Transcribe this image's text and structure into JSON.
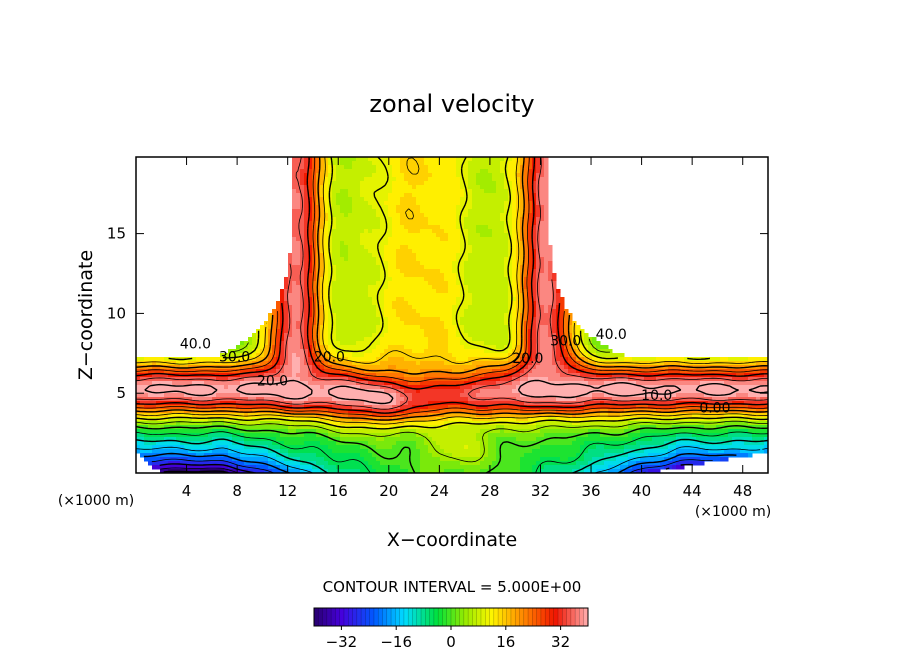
{
  "chart_data": {
    "type": "heatmap",
    "title": "zonal velocity",
    "xlabel": "X−coordinate",
    "ylabel": "Z−coordinate",
    "x_unit_left": "(×1000 m)",
    "x_unit_right": "(×1000 m)",
    "xlim": [
      0,
      50
    ],
    "ylim": [
      0,
      19.8
    ],
    "x_ticks": [
      4,
      8,
      12,
      16,
      20,
      24,
      28,
      32,
      36,
      40,
      44,
      48
    ],
    "y_ticks": [
      5,
      10,
      15
    ],
    "contour_interval_text": "CONTOUR INTERVAL = 5.000E+00",
    "contour_interval": 5,
    "color_range": [
      -40,
      40
    ],
    "colorbar_ticks": [
      -32,
      -16,
      0,
      16,
      32
    ],
    "contour_labels": [
      {
        "text": "40.0",
        "x": 4.7,
        "z": 8.1
      },
      {
        "text": "30.0",
        "x": 7.8,
        "z": 7.3
      },
      {
        "text": "20.0",
        "x": 10.8,
        "z": 5.8
      },
      {
        "text": "20.0",
        "x": 15.3,
        "z": 7.3
      },
      {
        "text": "20.0",
        "x": 31.0,
        "z": 7.2
      },
      {
        "text": "30.0",
        "x": 34.0,
        "z": 8.3
      },
      {
        "text": "40.0",
        "x": 37.6,
        "z": 8.7
      },
      {
        "text": "10.0",
        "x": 41.2,
        "z": 4.9
      },
      {
        "text": "0.00",
        "x": 45.8,
        "z": 4.1
      }
    ]
  }
}
